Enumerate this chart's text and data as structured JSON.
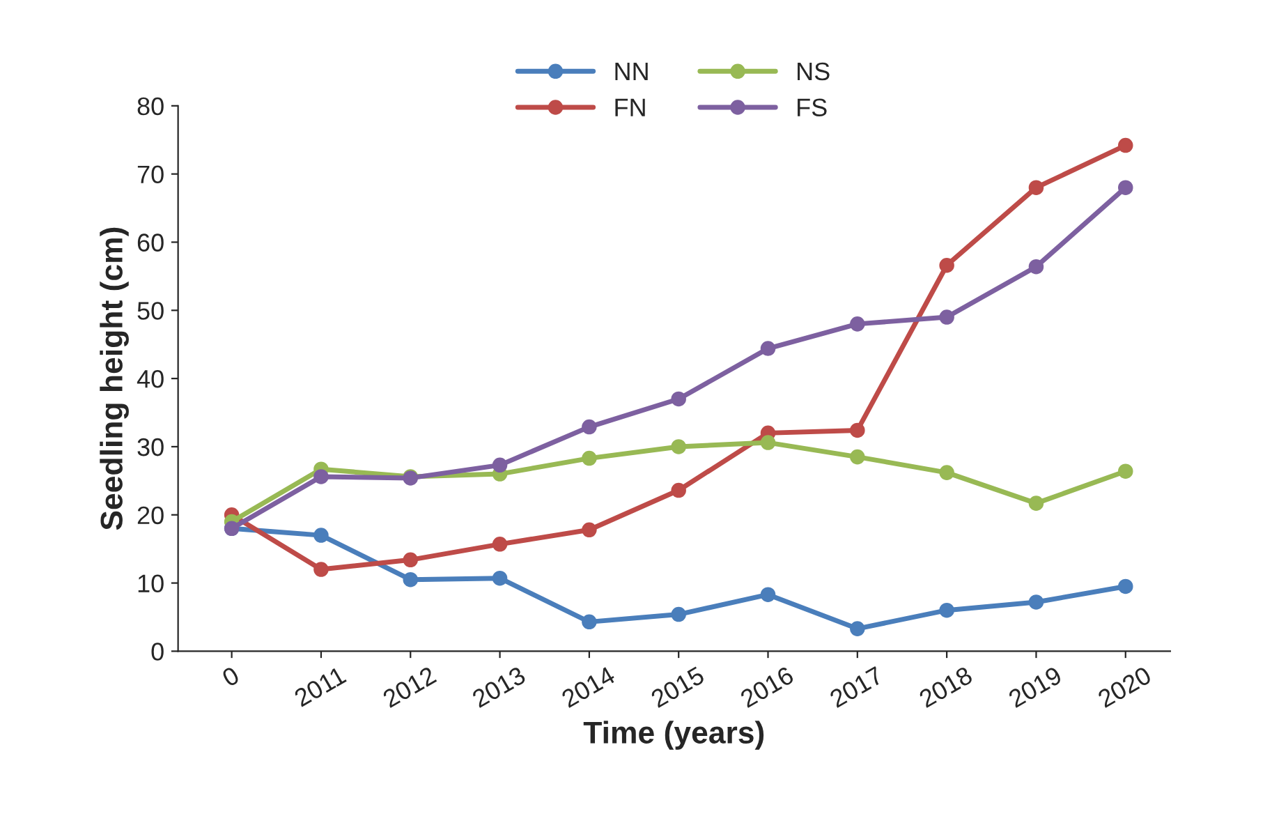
{
  "chart_data": {
    "type": "line",
    "xlabel": "Time (years)",
    "ylabel": "Seedling height (cm)",
    "categories": [
      "0",
      "2011",
      "2012",
      "2013",
      "2014",
      "2015",
      "2016",
      "2017",
      "2018",
      "2019",
      "2020"
    ],
    "series": [
      {
        "name": "NN",
        "color": "#4a7ebb",
        "values": [
          18.0,
          17.0,
          10.5,
          10.7,
          4.3,
          5.4,
          8.3,
          3.3,
          6.0,
          7.2,
          9.5
        ]
      },
      {
        "name": "FN",
        "color": "#be4b48",
        "values": [
          20.0,
          12.0,
          13.4,
          15.7,
          17.8,
          23.6,
          32.0,
          32.4,
          56.6,
          68.0,
          74.2
        ]
      },
      {
        "name": "NS",
        "color": "#98b954",
        "values": [
          19.0,
          26.7,
          25.6,
          26.0,
          28.3,
          30.0,
          30.6,
          28.5,
          26.2,
          21.7,
          26.4
        ]
      },
      {
        "name": "FS",
        "color": "#7d60a0",
        "values": [
          18.0,
          25.6,
          25.4,
          27.3,
          32.9,
          37.0,
          44.4,
          48.0,
          49.0,
          56.4,
          68.0
        ]
      }
    ],
    "ylim": [
      0,
      80
    ],
    "yticks": [
      0,
      10,
      20,
      30,
      40,
      50,
      60,
      70,
      80
    ],
    "grid": false,
    "legend": "top",
    "marker": "circle",
    "line_style": "solid"
  }
}
